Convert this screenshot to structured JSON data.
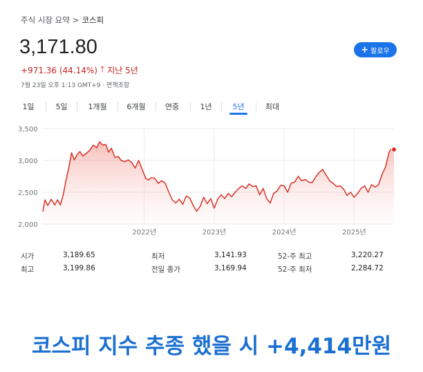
{
  "breadcrumb": {
    "root": "주식 시장 요약",
    "separator": ">",
    "current": "코스피"
  },
  "quote": {
    "price": "3,171.80",
    "change": "+971.36 (44.14%)",
    "direction_icon": "arrow-up-icon",
    "period_label": "지난 5년",
    "timestamp": "7월 23일 오후 1:13 GMT+9 · 면책조항",
    "change_color": "#c5221f"
  },
  "follow_button": {
    "label": "팔로우",
    "icon": "plus-icon",
    "color": "#1a73e8"
  },
  "tabs": [
    {
      "label": "1일"
    },
    {
      "label": "5일"
    },
    {
      "label": "1개월"
    },
    {
      "label": "6개월"
    },
    {
      "label": "연중"
    },
    {
      "label": "1년"
    },
    {
      "label": "5년",
      "active": true
    },
    {
      "label": "최대"
    }
  ],
  "chart_data": {
    "type": "area",
    "x_tick_labels": [
      "2022년",
      "2023년",
      "2024년",
      "2025년"
    ],
    "y_tick_labels": [
      "3,500",
      "3,000",
      "2,500",
      "2,000"
    ],
    "ylim": [
      2000,
      3500
    ],
    "xlim": [
      2020.55,
      2025.57
    ],
    "grid": true,
    "line_color": "#d93025",
    "x": [
      2020.55,
      2020.58,
      2020.62,
      2020.67,
      2020.72,
      2020.76,
      2020.8,
      2020.84,
      2020.88,
      2020.92,
      2020.96,
      2021.0,
      2021.04,
      2021.08,
      2021.12,
      2021.17,
      2021.22,
      2021.27,
      2021.32,
      2021.36,
      2021.41,
      2021.45,
      2021.49,
      2021.53,
      2021.58,
      2021.63,
      2021.67,
      2021.72,
      2021.77,
      2021.82,
      2021.87,
      2021.92,
      2021.97,
      2022.02,
      2022.06,
      2022.1,
      2022.15,
      2022.2,
      2022.25,
      2022.3,
      2022.35,
      2022.4,
      2022.45,
      2022.5,
      2022.55,
      2022.6,
      2022.65,
      2022.7,
      2022.75,
      2022.8,
      2022.85,
      2022.9,
      2022.95,
      2023.0,
      2023.05,
      2023.1,
      2023.15,
      2023.2,
      2023.25,
      2023.3,
      2023.35,
      2023.4,
      2023.45,
      2023.5,
      2023.55,
      2023.6,
      2023.65,
      2023.7,
      2023.75,
      2023.8,
      2023.85,
      2023.9,
      2023.95,
      2024.0,
      2024.05,
      2024.1,
      2024.15,
      2024.2,
      2024.25,
      2024.3,
      2024.35,
      2024.4,
      2024.45,
      2024.5,
      2024.55,
      2024.6,
      2024.65,
      2024.7,
      2024.75,
      2024.8,
      2024.85,
      2024.9,
      2024.95,
      2025.0,
      2025.05,
      2025.1,
      2025.15,
      2025.2,
      2025.25,
      2025.3,
      2025.35,
      2025.4,
      2025.45,
      2025.5,
      2025.53,
      2025.57
    ],
    "values": [
      2200,
      2380,
      2290,
      2390,
      2300,
      2380,
      2300,
      2450,
      2680,
      2880,
      3120,
      3010,
      3090,
      3140,
      3070,
      3110,
      3160,
      3240,
      3200,
      3290,
      3240,
      3250,
      3130,
      3190,
      3050,
      3060,
      3000,
      2980,
      3010,
      2970,
      2880,
      3000,
      2860,
      2720,
      2690,
      2730,
      2720,
      2640,
      2680,
      2640,
      2500,
      2380,
      2330,
      2390,
      2310,
      2440,
      2410,
      2290,
      2200,
      2280,
      2420,
      2320,
      2400,
      2250,
      2390,
      2460,
      2400,
      2480,
      2430,
      2500,
      2560,
      2600,
      2560,
      2630,
      2590,
      2600,
      2460,
      2560,
      2400,
      2330,
      2480,
      2520,
      2610,
      2600,
      2500,
      2640,
      2660,
      2750,
      2680,
      2700,
      2660,
      2650,
      2740,
      2810,
      2860,
      2770,
      2680,
      2640,
      2590,
      2600,
      2550,
      2450,
      2500,
      2420,
      2480,
      2560,
      2600,
      2500,
      2620,
      2580,
      2620,
      2780,
      2900,
      3130,
      3180,
      3171.8
    ]
  },
  "stats": {
    "rows": [
      [
        {
          "label": "시가",
          "value": "3,189.65"
        },
        {
          "label": "최저",
          "value": "3,141.93"
        },
        {
          "label": "52-주 최고",
          "value": "3,220.27"
        }
      ],
      [
        {
          "label": "최고",
          "value": "3,199.86"
        },
        {
          "label": "전일 종가",
          "value": "3,169.94"
        },
        {
          "label": "52-주 최저",
          "value": "2,284.72"
        }
      ]
    ]
  },
  "caption": {
    "text": "코스피 지수 추종 했을 시 +4,414만원",
    "color": "#1a6fd1"
  }
}
